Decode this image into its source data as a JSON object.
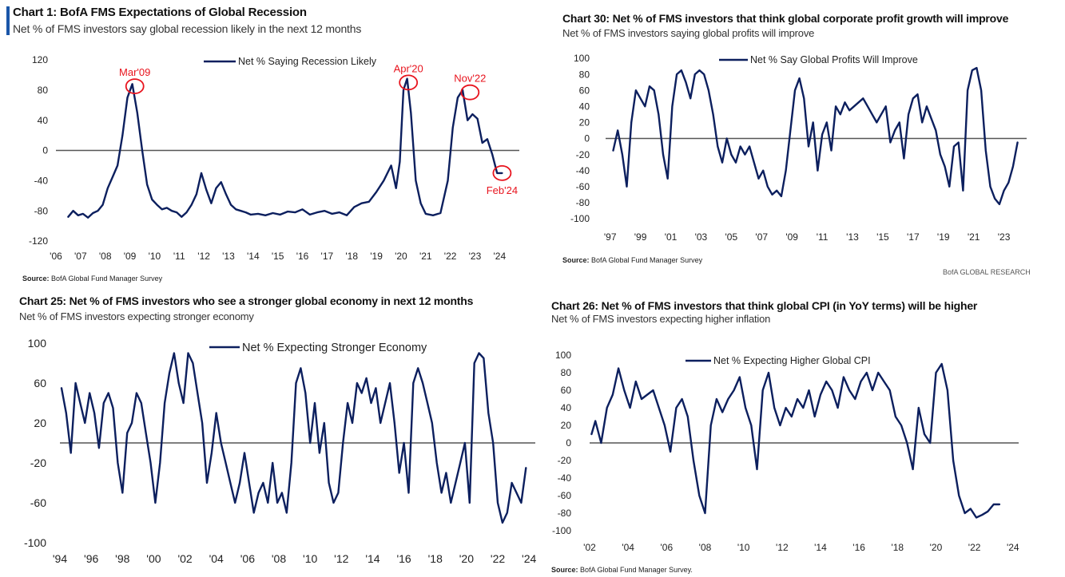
{
  "colors": {
    "line": "#0c1f5e",
    "zero": "#555555",
    "callout": "#e8141e",
    "accent_bar": "#1a56a8"
  },
  "chart_data": [
    {
      "id": "c1",
      "type": "line",
      "title": "Chart 1: BofA FMS Expectations of Global Recession",
      "subtitle": "Net % of FMS investors say global recession likely in the next 12 months",
      "source_label": "Source:",
      "source_text": " BofA Global Fund Manager Survey",
      "legend": "Net % Saying Recession Likely",
      "ylim": [
        -120,
        120
      ],
      "yticks": [
        120,
        80,
        40,
        0,
        -40,
        -80,
        -120
      ],
      "xlim": [
        2006,
        2024.8
      ],
      "xticks": [
        {
          "v": 2006,
          "l": "'06"
        },
        {
          "v": 2007,
          "l": "'07"
        },
        {
          "v": 2008,
          "l": "'08"
        },
        {
          "v": 2009,
          "l": "'09"
        },
        {
          "v": 2010,
          "l": "'10"
        },
        {
          "v": 2011,
          "l": "'11"
        },
        {
          "v": 2012,
          "l": "'12"
        },
        {
          "v": 2013,
          "l": "'13"
        },
        {
          "v": 2014,
          "l": "'14"
        },
        {
          "v": 2015,
          "l": "'15"
        },
        {
          "v": 2016,
          "l": "'16"
        },
        {
          "v": 2017,
          "l": "'17"
        },
        {
          "v": 2018,
          "l": "'18"
        },
        {
          "v": 2019,
          "l": "'19"
        },
        {
          "v": 2020,
          "l": "'20"
        },
        {
          "v": 2021,
          "l": "'21"
        },
        {
          "v": 2022,
          "l": "'22"
        },
        {
          "v": 2023,
          "l": "'23"
        },
        {
          "v": 2024,
          "l": "'24"
        }
      ],
      "x": [
        2006.5,
        2006.7,
        2006.9,
        2007.1,
        2007.3,
        2007.5,
        2007.7,
        2007.9,
        2008.1,
        2008.3,
        2008.5,
        2008.7,
        2008.9,
        2009.1,
        2009.3,
        2009.5,
        2009.7,
        2009.9,
        2010.1,
        2010.3,
        2010.5,
        2010.7,
        2010.9,
        2011.1,
        2011.3,
        2011.5,
        2011.7,
        2011.9,
        2012.1,
        2012.3,
        2012.5,
        2012.7,
        2012.9,
        2013.1,
        2013.3,
        2013.5,
        2013.7,
        2013.9,
        2014.2,
        2014.5,
        2014.8,
        2015.1,
        2015.4,
        2015.7,
        2016.0,
        2016.3,
        2016.6,
        2016.9,
        2017.2,
        2017.5,
        2017.8,
        2018.1,
        2018.4,
        2018.7,
        2019.0,
        2019.3,
        2019.6,
        2019.8,
        2019.95,
        2020.1,
        2020.25,
        2020.4,
        2020.6,
        2020.8,
        2021.0,
        2021.3,
        2021.6,
        2021.9,
        2022.1,
        2022.3,
        2022.5,
        2022.7,
        2022.9,
        2023.1,
        2023.3,
        2023.5,
        2023.7,
        2023.9,
        2024.1
      ],
      "values": [
        -88,
        -80,
        -86,
        -84,
        -89,
        -83,
        -80,
        -72,
        -50,
        -35,
        -20,
        20,
        70,
        88,
        50,
        0,
        -45,
        -65,
        -72,
        -78,
        -76,
        -80,
        -82,
        -88,
        -82,
        -72,
        -58,
        -30,
        -52,
        -70,
        -50,
        -42,
        -58,
        -72,
        -78,
        -80,
        -82,
        -85,
        -84,
        -86,
        -83,
        -85,
        -81,
        -82,
        -78,
        -85,
        -82,
        -80,
        -84,
        -82,
        -86,
        -75,
        -70,
        -68,
        -55,
        -40,
        -20,
        -50,
        -15,
        80,
        95,
        50,
        -40,
        -70,
        -84,
        -86,
        -83,
        -40,
        30,
        70,
        80,
        40,
        48,
        42,
        10,
        15,
        -5,
        -30,
        -30
      ],
      "annotations": [
        {
          "label": "Mar'09",
          "x": 2009.2,
          "y": 85,
          "pos": "above"
        },
        {
          "label": "Apr'20",
          "x": 2020.3,
          "y": 90,
          "pos": "above"
        },
        {
          "label": "Nov'22",
          "x": 2022.8,
          "y": 77,
          "pos": "above"
        },
        {
          "label": "Feb'24",
          "x": 2024.1,
          "y": -30,
          "pos": "below"
        }
      ]
    },
    {
      "id": "c30",
      "type": "line",
      "title": "Chart 30: Net % of FMS investors that think global corporate profit growth will improve",
      "subtitle": "Net % of FMS investors saying global profits will improve",
      "source_label": "Source:",
      "source_text": " BofA Global Fund Manager Survey",
      "brand": "BofA GLOBAL RESEARCH",
      "legend": "Net % Say Global Profits Will Improve",
      "ylim": [
        -100,
        100
      ],
      "yticks": [
        100,
        80,
        60,
        40,
        20,
        0,
        -20,
        -40,
        -60,
        -80,
        -100
      ],
      "xlim": [
        1996.7,
        2024.5
      ],
      "xticks": [
        {
          "v": 1997,
          "l": "'97"
        },
        {
          "v": 1999,
          "l": "'99"
        },
        {
          "v": 2001,
          "l": "'01"
        },
        {
          "v": 2003,
          "l": "'03"
        },
        {
          "v": 2005,
          "l": "'05"
        },
        {
          "v": 2007,
          "l": "'07"
        },
        {
          "v": 2009,
          "l": "'09"
        },
        {
          "v": 2011,
          "l": "'11"
        },
        {
          "v": 2013,
          "l": "'13"
        },
        {
          "v": 2015,
          "l": "'15"
        },
        {
          "v": 2017,
          "l": "'17"
        },
        {
          "v": 2019,
          "l": "'19"
        },
        {
          "v": 2021,
          "l": "'21"
        },
        {
          "v": 2023,
          "l": "'23"
        }
      ],
      "x": [
        1997.2,
        1997.5,
        1997.8,
        1998.1,
        1998.4,
        1998.7,
        1999.0,
        1999.3,
        1999.6,
        1999.9,
        2000.2,
        2000.5,
        2000.8,
        2001.1,
        2001.4,
        2001.7,
        2002.0,
        2002.3,
        2002.6,
        2002.9,
        2003.2,
        2003.5,
        2003.8,
        2004.1,
        2004.4,
        2004.7,
        2005.0,
        2005.3,
        2005.6,
        2005.9,
        2006.2,
        2006.5,
        2006.8,
        2007.1,
        2007.4,
        2007.7,
        2008.0,
        2008.3,
        2008.6,
        2008.9,
        2009.2,
        2009.5,
        2009.8,
        2010.1,
        2010.4,
        2010.7,
        2011.0,
        2011.3,
        2011.6,
        2011.9,
        2012.2,
        2012.5,
        2012.8,
        2013.1,
        2013.4,
        2013.7,
        2014.0,
        2014.3,
        2014.6,
        2014.9,
        2015.2,
        2015.5,
        2015.8,
        2016.1,
        2016.4,
        2016.7,
        2017.0,
        2017.3,
        2017.6,
        2017.9,
        2018.2,
        2018.5,
        2018.8,
        2019.1,
        2019.4,
        2019.7,
        2020.0,
        2020.3,
        2020.6,
        2020.9,
        2021.2,
        2021.5,
        2021.8,
        2022.1,
        2022.4,
        2022.7,
        2023.0,
        2023.3,
        2023.6,
        2023.9
      ],
      "values": [
        -15,
        10,
        -20,
        -60,
        20,
        60,
        50,
        40,
        65,
        60,
        30,
        -20,
        -50,
        40,
        80,
        85,
        70,
        50,
        80,
        85,
        80,
        60,
        30,
        -10,
        -30,
        0,
        -20,
        -30,
        -10,
        -20,
        -10,
        -30,
        -50,
        -40,
        -60,
        -70,
        -65,
        -72,
        -40,
        10,
        60,
        75,
        50,
        -10,
        20,
        -40,
        5,
        20,
        -15,
        40,
        30,
        45,
        35,
        40,
        45,
        50,
        40,
        30,
        20,
        30,
        40,
        -5,
        10,
        20,
        -25,
        30,
        50,
        55,
        20,
        40,
        25,
        10,
        -20,
        -35,
        -60,
        -10,
        -5,
        -65,
        60,
        85,
        88,
        60,
        -15,
        -60,
        -75,
        -82,
        -65,
        -55,
        -35,
        -5
      ],
      "annotations": []
    },
    {
      "id": "c25",
      "type": "line",
      "title": "Chart 25: Net % of FMS investors who see a stronger global economy in next 12 months",
      "subtitle": "Net % of FMS investors expecting stronger economy",
      "legend": "Net % Expecting Stronger Economy",
      "ylim": [
        -100,
        100
      ],
      "yticks": [
        100,
        60,
        20,
        -20,
        -60,
        -100
      ],
      "xlim": [
        1994,
        2024.4
      ],
      "xticks": [
        {
          "v": 1994,
          "l": "'94"
        },
        {
          "v": 1996,
          "l": "'96"
        },
        {
          "v": 1998,
          "l": "'98"
        },
        {
          "v": 2000,
          "l": "'00"
        },
        {
          "v": 2002,
          "l": "'02"
        },
        {
          "v": 2004,
          "l": "'04"
        },
        {
          "v": 2006,
          "l": "'06"
        },
        {
          "v": 2008,
          "l": "'08"
        },
        {
          "v": 2010,
          "l": "'10"
        },
        {
          "v": 2012,
          "l": "'12"
        },
        {
          "v": 2014,
          "l": "'14"
        },
        {
          "v": 2016,
          "l": "'16"
        },
        {
          "v": 2018,
          "l": "'18"
        },
        {
          "v": 2020,
          "l": "'20"
        },
        {
          "v": 2022,
          "l": "'22"
        },
        {
          "v": 2024,
          "l": "'24"
        }
      ],
      "x": [
        1994.1,
        1994.4,
        1994.7,
        1995.0,
        1995.3,
        1995.6,
        1995.9,
        1996.2,
        1996.5,
        1996.8,
        1997.1,
        1997.4,
        1997.7,
        1998.0,
        1998.3,
        1998.6,
        1998.9,
        1999.2,
        1999.5,
        1999.8,
        2000.1,
        2000.4,
        2000.7,
        2001.0,
        2001.3,
        2001.6,
        2001.9,
        2002.2,
        2002.5,
        2002.8,
        2003.1,
        2003.4,
        2003.7,
        2004.0,
        2004.3,
        2004.6,
        2004.9,
        2005.2,
        2005.5,
        2005.8,
        2006.1,
        2006.4,
        2006.7,
        2007.0,
        2007.3,
        2007.6,
        2007.9,
        2008.2,
        2008.5,
        2008.8,
        2009.1,
        2009.4,
        2009.7,
        2010.0,
        2010.3,
        2010.6,
        2010.9,
        2011.2,
        2011.5,
        2011.8,
        2012.1,
        2012.4,
        2012.7,
        2013.0,
        2013.3,
        2013.6,
        2013.9,
        2014.2,
        2014.5,
        2014.8,
        2015.1,
        2015.4,
        2015.7,
        2016.0,
        2016.3,
        2016.6,
        2016.9,
        2017.2,
        2017.5,
        2017.8,
        2018.1,
        2018.4,
        2018.7,
        2019.0,
        2019.3,
        2019.6,
        2019.9,
        2020.2,
        2020.5,
        2020.8,
        2021.1,
        2021.4,
        2021.7,
        2022.0,
        2022.3,
        2022.6,
        2022.9,
        2023.2,
        2023.5,
        2023.8
      ],
      "values": [
        55,
        30,
        -10,
        60,
        40,
        20,
        50,
        30,
        -5,
        40,
        50,
        35,
        -20,
        -50,
        10,
        20,
        50,
        40,
        10,
        -20,
        -60,
        -20,
        40,
        70,
        90,
        60,
        40,
        90,
        80,
        50,
        20,
        -40,
        -10,
        30,
        0,
        -20,
        -40,
        -60,
        -40,
        -10,
        -40,
        -70,
        -50,
        -40,
        -60,
        -20,
        -60,
        -50,
        -70,
        -20,
        60,
        75,
        50,
        0,
        40,
        -10,
        20,
        -40,
        -60,
        -50,
        0,
        40,
        20,
        60,
        50,
        65,
        40,
        55,
        20,
        40,
        60,
        20,
        -30,
        0,
        -50,
        60,
        75,
        60,
        40,
        20,
        -20,
        -50,
        -30,
        -60,
        -40,
        -20,
        0,
        -60,
        80,
        90,
        85,
        30,
        0,
        -60,
        -80,
        -70,
        -40,
        -50,
        -60,
        -25
      ],
      "annotations": []
    },
    {
      "id": "c26",
      "type": "line",
      "title": "Chart 26: Net % of FMS investors that think global CPI (in YoY terms) will be higher",
      "subtitle": "Net % of FMS investors expecting higher inflation",
      "source_label": "Source:",
      "source_text": " BofA Global Fund Manager Survey.",
      "legend": "Net % Expecting Higher Global CPI",
      "ylim": [
        -100,
        100
      ],
      "yticks": [
        100,
        80,
        60,
        40,
        20,
        0,
        -20,
        -40,
        -60,
        -80,
        -100
      ],
      "xlim": [
        2002,
        2024.3
      ],
      "xticks": [
        {
          "v": 2002,
          "l": "'02"
        },
        {
          "v": 2004,
          "l": "'04"
        },
        {
          "v": 2006,
          "l": "'06"
        },
        {
          "v": 2008,
          "l": "'08"
        },
        {
          "v": 2010,
          "l": "'10"
        },
        {
          "v": 2012,
          "l": "'12"
        },
        {
          "v": 2014,
          "l": "'14"
        },
        {
          "v": 2016,
          "l": "'16"
        },
        {
          "v": 2018,
          "l": "'18"
        },
        {
          "v": 2020,
          "l": "'20"
        },
        {
          "v": 2022,
          "l": "'22"
        },
        {
          "v": 2024,
          "l": "'24"
        }
      ],
      "x": [
        2002.1,
        2002.3,
        2002.6,
        2002.9,
        2003.2,
        2003.5,
        2003.8,
        2004.1,
        2004.4,
        2004.7,
        2005.0,
        2005.3,
        2005.6,
        2005.9,
        2006.2,
        2006.5,
        2006.8,
        2007.1,
        2007.4,
        2007.7,
        2008.0,
        2008.3,
        2008.6,
        2008.9,
        2009.2,
        2009.5,
        2009.8,
        2010.1,
        2010.4,
        2010.7,
        2011.0,
        2011.3,
        2011.6,
        2011.9,
        2012.2,
        2012.5,
        2012.8,
        2013.1,
        2013.4,
        2013.7,
        2014.0,
        2014.3,
        2014.6,
        2014.9,
        2015.2,
        2015.5,
        2015.8,
        2016.1,
        2016.4,
        2016.7,
        2017.0,
        2017.3,
        2017.6,
        2017.9,
        2018.2,
        2018.5,
        2018.8,
        2019.1,
        2019.4,
        2019.7,
        2020.0,
        2020.3,
        2020.6,
        2020.9,
        2021.2,
        2021.5,
        2021.8,
        2022.1,
        2022.4,
        2022.7,
        2023.0,
        2023.3
      ],
      "values": [
        10,
        25,
        0,
        40,
        55,
        85,
        60,
        40,
        70,
        50,
        55,
        60,
        40,
        20,
        -10,
        40,
        50,
        30,
        -20,
        -60,
        -80,
        20,
        50,
        35,
        50,
        60,
        75,
        40,
        20,
        -30,
        60,
        80,
        40,
        20,
        40,
        30,
        50,
        40,
        60,
        30,
        55,
        70,
        60,
        40,
        75,
        60,
        50,
        70,
        80,
        60,
        80,
        70,
        60,
        30,
        20,
        0,
        -30,
        40,
        10,
        0,
        80,
        90,
        60,
        -20,
        -60,
        -80,
        -75,
        -85,
        -82,
        -78,
        -70,
        -70
      ],
      "annotations": []
    }
  ]
}
